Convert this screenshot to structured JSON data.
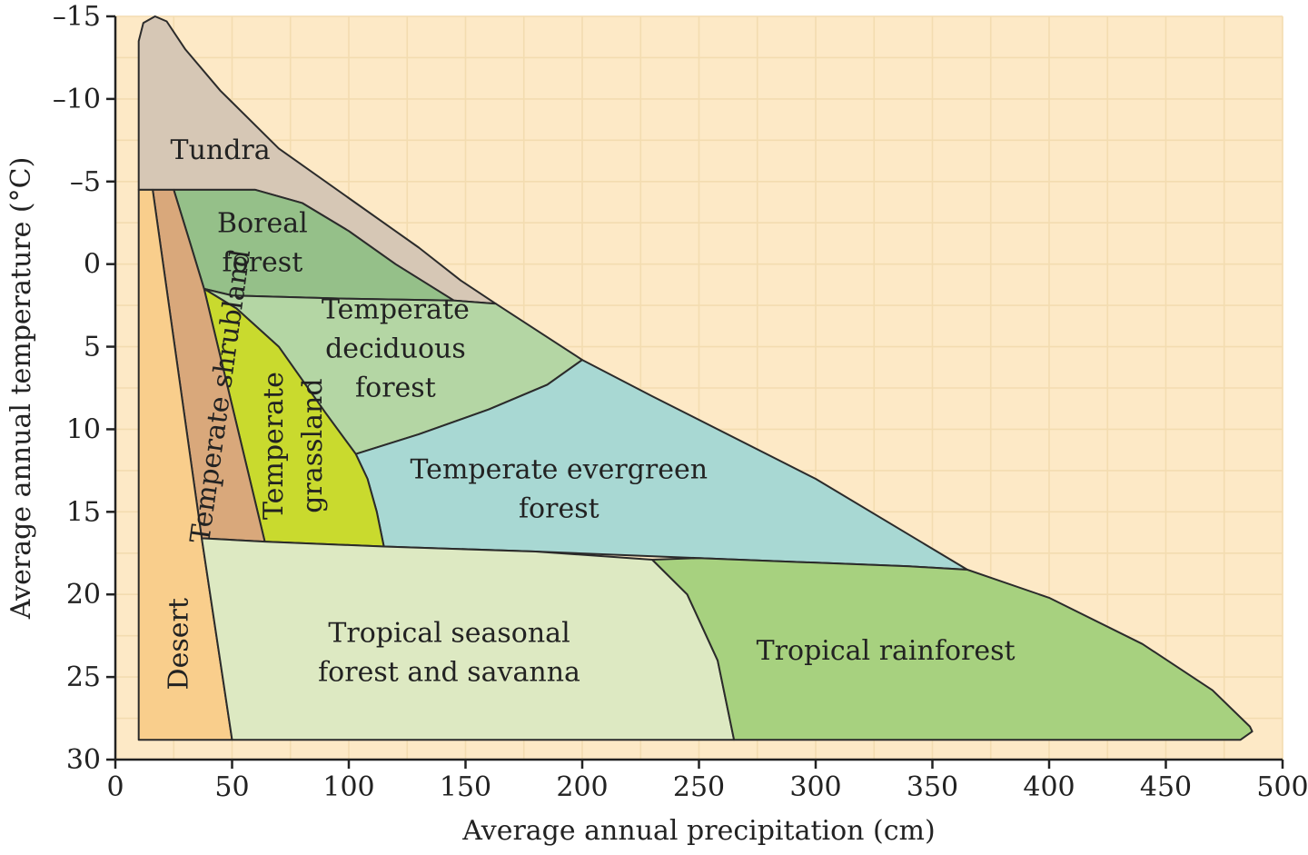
{
  "chart_data": {
    "type": "area",
    "title": "",
    "xlabel": "Average annual precipitation (cm)",
    "ylabel": "Average annual temperature (°C)",
    "xlim": [
      0,
      500
    ],
    "ylim": [
      30,
      -15
    ],
    "x_ticks": [
      "0",
      "50",
      "100",
      "150",
      "200",
      "250",
      "300",
      "350",
      "400",
      "450",
      "500"
    ],
    "y_ticks": [
      "–15",
      "–10",
      "–5",
      "0",
      "5",
      "10",
      "15",
      "20",
      "25",
      "30"
    ],
    "y_tick_values": [
      -15,
      -10,
      -5,
      0,
      5,
      10,
      15,
      20,
      25,
      30
    ],
    "grid": true,
    "background_color": "#fde9c6",
    "regions": [
      {
        "name": "Tundra",
        "color": "#d6c7b5",
        "label_lines": [
          "Tundra"
        ],
        "label_at": [
          45,
          -6.9
        ],
        "polygon": [
          [
            10,
            -4.5
          ],
          [
            10,
            -13.5
          ],
          [
            12,
            -14.6
          ],
          [
            17,
            -15
          ],
          [
            22,
            -14.7
          ],
          [
            30,
            -13
          ],
          [
            45,
            -10.5
          ],
          [
            70,
            -7
          ],
          [
            100,
            -4
          ],
          [
            130,
            -1
          ],
          [
            148,
            1
          ],
          [
            163,
            2.4
          ],
          [
            145,
            2.2
          ],
          [
            120,
            0
          ],
          [
            100,
            -2
          ],
          [
            80,
            -3.7
          ],
          [
            60,
            -4.5
          ],
          [
            25,
            -4.5
          ]
        ]
      },
      {
        "name": "Boreal forest",
        "color": "#95c089",
        "label_lines": [
          "Boreal",
          "forest"
        ],
        "label_at": [
          63,
          -1.3
        ],
        "polygon": [
          [
            25,
            -4.5
          ],
          [
            60,
            -4.5
          ],
          [
            80,
            -3.7
          ],
          [
            100,
            -2
          ],
          [
            120,
            0
          ],
          [
            145,
            2.2
          ],
          [
            100,
            2.1
          ],
          [
            50,
            1.9
          ],
          [
            38,
            1.5
          ],
          [
            32,
            -1.3
          ]
        ]
      },
      {
        "name": "Temperate deciduous forest",
        "color": "#b4d6a4",
        "label_lines": [
          "Temperate",
          "deciduous",
          "forest"
        ],
        "label_at": [
          120,
          5.1
        ],
        "polygon": [
          [
            38,
            1.5
          ],
          [
            50,
            1.9
          ],
          [
            100,
            2.1
          ],
          [
            145,
            2.2
          ],
          [
            163,
            2.4
          ],
          [
            200,
            5.8
          ],
          [
            185,
            7.3
          ],
          [
            160,
            8.8
          ],
          [
            130,
            10.3
          ],
          [
            103,
            11.5
          ],
          [
            90,
            9
          ],
          [
            70,
            5
          ],
          [
            52,
            2.7
          ]
        ]
      },
      {
        "name": "Temperate evergreen forest",
        "color": "#a8d8d3",
        "label_lines": [
          "Temperate evergreen",
          "forest"
        ],
        "label_at": [
          190,
          13.6
        ],
        "polygon": [
          [
            103,
            11.5
          ],
          [
            130,
            10.3
          ],
          [
            160,
            8.8
          ],
          [
            185,
            7.3
          ],
          [
            200,
            5.8
          ],
          [
            230,
            8
          ],
          [
            300,
            13
          ],
          [
            365,
            18.5
          ],
          [
            340,
            18.3
          ],
          [
            250,
            17.8
          ],
          [
            180,
            17.4
          ],
          [
            115,
            17.1
          ],
          [
            112,
            15
          ],
          [
            108,
            13
          ]
        ]
      },
      {
        "name": "Temperate grassland",
        "color": "#c9da2e",
        "label_lines": [
          "Temperate",
          "grassland"
        ],
        "label_at": [
          76,
          11
        ],
        "label_rotate": -90,
        "polygon": [
          [
            38,
            1.5
          ],
          [
            52,
            2.7
          ],
          [
            70,
            5
          ],
          [
            90,
            9
          ],
          [
            103,
            11.5
          ],
          [
            108,
            13
          ],
          [
            112,
            15
          ],
          [
            115,
            17.1
          ],
          [
            64,
            16.8
          ]
        ]
      },
      {
        "name": "Temperate shrubland",
        "color": "#d9a87b",
        "label_lines": [
          "Temperate shrubland"
        ],
        "label_at": [
          45,
          8
        ],
        "label_rotate": -82,
        "polygon": [
          [
            16,
            -4.5
          ],
          [
            25,
            -4.5
          ],
          [
            32,
            -1.3
          ],
          [
            38,
            1.5
          ],
          [
            64,
            16.8
          ],
          [
            37,
            16.6
          ]
        ]
      },
      {
        "name": "Desert",
        "color": "#f9ce8c",
        "label_lines": [
          "Desert"
        ],
        "label_at": [
          27,
          23
        ],
        "label_rotate": -90,
        "polygon": [
          [
            10,
            -4.5
          ],
          [
            16,
            -4.5
          ],
          [
            37,
            16.6
          ],
          [
            50,
            28.8
          ],
          [
            10,
            28.8
          ]
        ]
      },
      {
        "name": "Tropical seasonal forest and savanna",
        "color": "#dde9c2",
        "label_lines": [
          "Tropical seasonal",
          "forest and savanna"
        ],
        "label_at": [
          143,
          23.5
        ],
        "polygon": [
          [
            37,
            16.6
          ],
          [
            64,
            16.8
          ],
          [
            115,
            17.1
          ],
          [
            180,
            17.4
          ],
          [
            230,
            17.9
          ],
          [
            245,
            20
          ],
          [
            258,
            24
          ],
          [
            265,
            28.8
          ],
          [
            50,
            28.8
          ]
        ]
      },
      {
        "name": "Tropical rainforest",
        "color": "#a7d17f",
        "label_lines": [
          "Tropical rainforest"
        ],
        "label_at": [
          330,
          23.4
        ],
        "polygon": [
          [
            230,
            17.9
          ],
          [
            250,
            17.8
          ],
          [
            340,
            18.3
          ],
          [
            365,
            18.5
          ],
          [
            400,
            20.2
          ],
          [
            440,
            23
          ],
          [
            470,
            25.8
          ],
          [
            486,
            28
          ],
          [
            487,
            28.3
          ],
          [
            482,
            28.8
          ],
          [
            265,
            28.8
          ],
          [
            258,
            24
          ],
          [
            245,
            20
          ]
        ]
      }
    ]
  }
}
